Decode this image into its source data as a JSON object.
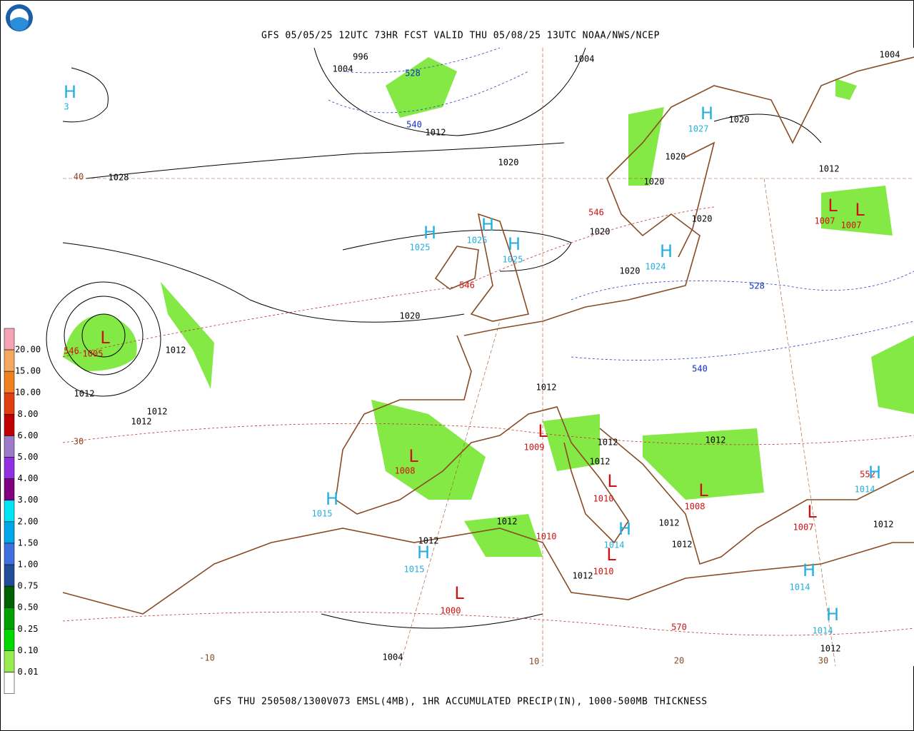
{
  "header": {
    "title": "GFS 05/05/25 12UTC 73HR FCST VALID THU 05/08/25 13UTC NOAA/NWS/NCEP"
  },
  "footer": {
    "caption": "GFS THU 250508/1300V073 EMSL(4MB), 1HR ACCUMULATED PRECIP(IN), 1000-500MB THICKNESS"
  },
  "legend": {
    "labels": [
      "20.00",
      "15.00",
      "10.00",
      "8.00",
      "6.00",
      "5.00",
      "4.00",
      "3.00",
      "2.00",
      "1.50",
      "1.00",
      "0.75",
      "0.50",
      "0.25",
      "0.10",
      "0.01"
    ],
    "colors": [
      "#f4a4b4",
      "#f4a860",
      "#f08020",
      "#e04010",
      "#c00000",
      "#9c7cc8",
      "#9030e0",
      "#800080",
      "#00e4f4",
      "#00a8e8",
      "#4070e0",
      "#204c98",
      "#006000",
      "#00a000",
      "#00d800",
      "#98ec50"
    ]
  },
  "map": {
    "isobar_labels": [
      "996",
      "1004",
      "1004",
      "1004",
      "1012",
      "1020",
      "1028",
      "1020",
      "1020",
      "1020",
      "1012",
      "1020",
      "1020",
      "1020",
      "1020",
      "1012",
      "1012",
      "1012",
      "1012",
      "1012",
      "1012",
      "1012",
      "1012",
      "1012",
      "1012",
      "1012",
      "1012",
      "1012",
      "1012",
      "1012",
      "1004"
    ],
    "thickness_labels_blue": [
      "528",
      "540",
      "528",
      "540"
    ],
    "thickness_labels_red": [
      "546",
      "546",
      "546",
      "570",
      "552"
    ],
    "temperature_labels": [
      "40",
      "30",
      "-10",
      "10",
      "20",
      "30"
    ],
    "highs": [
      {
        "symbol": "H",
        "pressure": "3"
      },
      {
        "symbol": "H",
        "pressure": "1025"
      },
      {
        "symbol": "H",
        "pressure": "1025"
      },
      {
        "symbol": "H",
        "pressure": "1025"
      },
      {
        "symbol": "H",
        "pressure": "1027"
      },
      {
        "symbol": "H",
        "pressure": "1024"
      },
      {
        "symbol": "H",
        "pressure": "1015"
      },
      {
        "symbol": "H",
        "pressure": "1015"
      },
      {
        "symbol": "H",
        "pressure": "1014"
      },
      {
        "symbol": "H",
        "pressure": "1014"
      },
      {
        "symbol": "H",
        "pressure": "1014"
      },
      {
        "symbol": "H",
        "pressure": "1014"
      }
    ],
    "lows": [
      {
        "symbol": "L",
        "pressure": "1005"
      },
      {
        "symbol": "L",
        "pressure": "1007"
      },
      {
        "symbol": "L",
        "pressure": "1007"
      },
      {
        "symbol": "L",
        "pressure": "1008"
      },
      {
        "symbol": "L",
        "pressure": "1009"
      },
      {
        "symbol": "L",
        "pressure": "1010"
      },
      {
        "symbol": "L",
        "pressure": "1008"
      },
      {
        "symbol": "L",
        "pressure": "1007"
      },
      {
        "symbol": "L",
        "pressure": "1010"
      },
      {
        "symbol": "L",
        "pressure": "1000"
      }
    ],
    "extra_red_labels": [
      "1010"
    ]
  }
}
